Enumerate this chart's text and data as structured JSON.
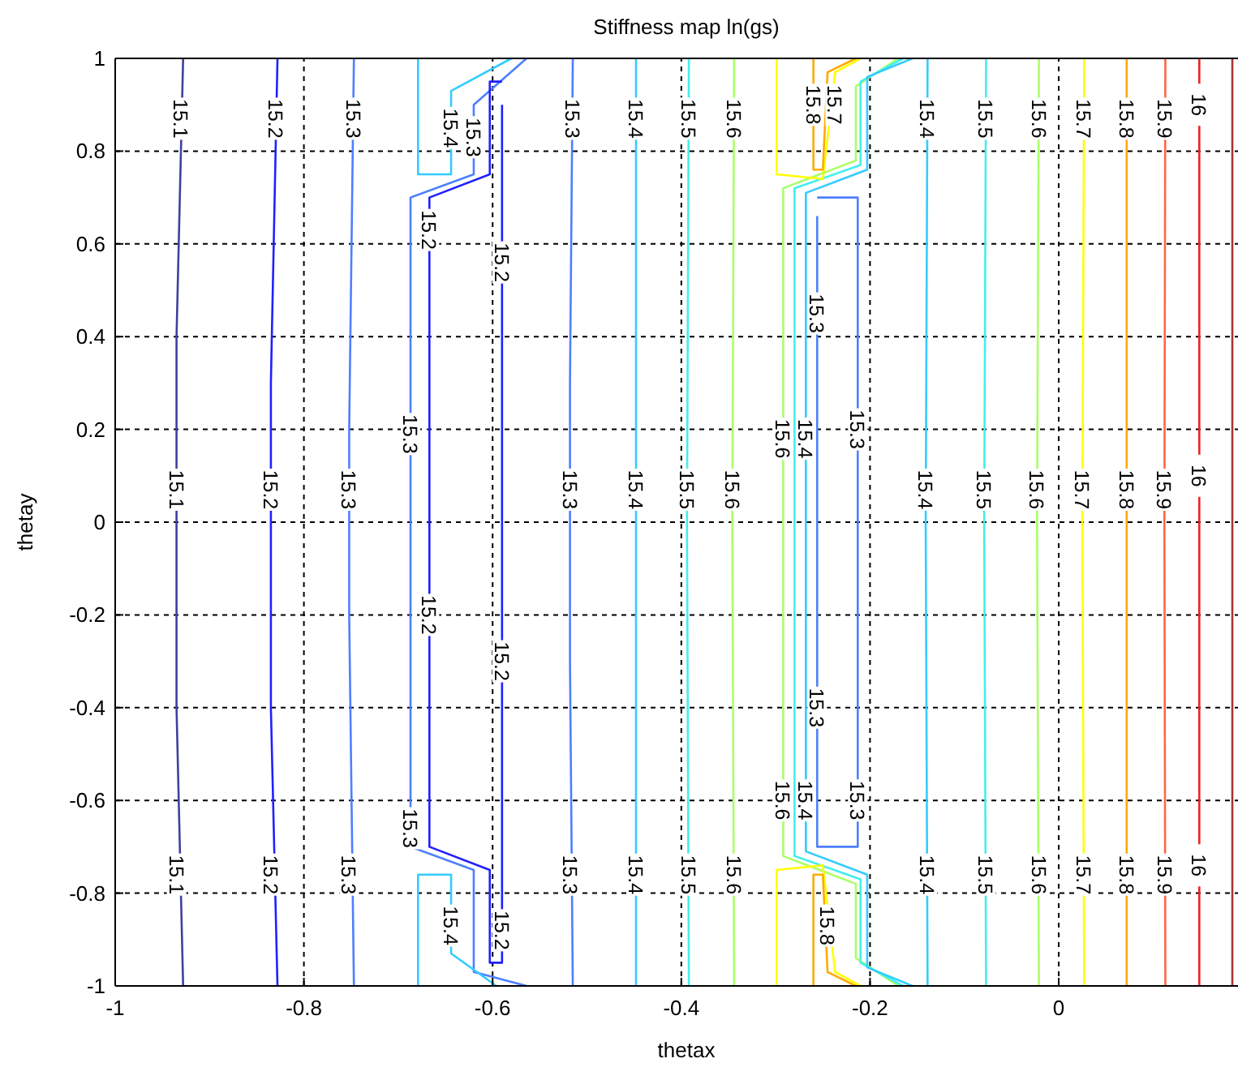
{
  "chart_data": {
    "type": "line",
    "title": "Stiffness map ln(gs)",
    "xlabel": "thetax",
    "ylabel": "thetay",
    "xlim": [
      -1,
      0.19
    ],
    "ylim": [
      -1,
      1
    ],
    "xticks": [
      -1,
      -0.8,
      -0.6,
      -0.4,
      -0.2,
      0
    ],
    "yticks": [
      -1,
      -0.8,
      -0.6,
      -0.4,
      -0.2,
      0,
      0.2,
      0.4,
      0.6,
      0.8,
      1
    ],
    "grid": true,
    "marker": "none",
    "line_style": "solid",
    "series": [
      {
        "color": "#4040a0",
        "x": [
          -0.928,
          -0.935,
          -0.935,
          -0.928
        ],
        "values": [
          1,
          0.4,
          -0.4,
          -1
        ]
      },
      {
        "color": "#2020ff",
        "x": [
          -0.828,
          -0.835,
          -0.835,
          -0.828
        ],
        "values": [
          1,
          0.3,
          -0.4,
          -1
        ]
      },
      {
        "color": "#4d7fff",
        "x": [
          -0.747,
          -0.752,
          -0.752,
          -0.747
        ],
        "values": [
          1,
          0.2,
          -0.2,
          -1
        ]
      },
      {
        "color": "#4d7fff",
        "x": [
          -0.564,
          -0.62,
          -0.62,
          -0.687,
          -0.687,
          -0.62,
          -0.62,
          -0.564
        ],
        "values": [
          -1,
          -0.97,
          -0.75,
          -0.7,
          0.7,
          0.75,
          0.9,
          1
        ]
      },
      {
        "color": "#2020ff",
        "x": [
          -0.59,
          -0.603,
          -0.603,
          -0.667,
          -0.667,
          -0.603,
          -0.603,
          -0.59,
          -0.59
        ],
        "values": [
          0.95,
          0.95,
          0.75,
          0.7,
          -0.7,
          -0.75,
          -0.95,
          -0.95,
          0.9
        ]
      },
      {
        "color": "#33ccff",
        "x": [
          -0.679,
          -0.679,
          -0.644,
          -0.644,
          -0.596
        ],
        "values": [
          -1,
          -0.76,
          -0.76,
          -0.93,
          -1
        ]
      },
      {
        "color": "#33ccff",
        "x": [
          -0.679,
          -0.679,
          -0.644,
          -0.644,
          -0.58
        ],
        "values": [
          1,
          0.75,
          0.75,
          0.93,
          1
        ]
      },
      {
        "color": "#4d7fff",
        "x": [
          -0.515,
          -0.518,
          -0.518,
          -0.515
        ],
        "values": [
          1,
          0.3,
          -0.3,
          -1
        ]
      },
      {
        "color": "#33ccff",
        "x": [
          -0.448,
          -0.448
        ],
        "values": [
          1,
          -1
        ]
      },
      {
        "color": "#44eeee",
        "x": [
          -0.392,
          -0.394,
          -0.392
        ],
        "values": [
          1,
          0,
          -1
        ]
      },
      {
        "color": "#aaff66",
        "x": [
          -0.344,
          -0.346,
          -0.344
        ],
        "values": [
          1,
          0,
          -1
        ]
      },
      {
        "color": "#aaff66",
        "x": [
          -0.17,
          -0.215,
          -0.215,
          -0.292,
          -0.292,
          -0.215,
          -0.215,
          -0.17
        ],
        "values": [
          1,
          0.94,
          0.78,
          0.72,
          -0.72,
          -0.78,
          -0.94,
          -1
        ]
      },
      {
        "color": "#44eeee",
        "x": [
          -0.165,
          -0.21,
          -0.21,
          -0.28,
          -0.28,
          -0.21,
          -0.21,
          -0.165
        ],
        "values": [
          1,
          0.95,
          0.77,
          0.72,
          -0.72,
          -0.77,
          -0.95,
          -1
        ]
      },
      {
        "color": "#33ccff",
        "x": [
          -0.155,
          -0.203,
          -0.203,
          -0.268,
          -0.268,
          -0.203,
          -0.203,
          -0.155
        ],
        "values": [
          1,
          0.96,
          0.76,
          0.71,
          -0.71,
          -0.76,
          -0.96,
          -1
        ]
      },
      {
        "color": "#4d7fff",
        "x": [
          -0.256,
          -0.213,
          -0.213,
          -0.256,
          -0.256
        ],
        "values": [
          0.7,
          0.7,
          -0.7,
          -0.7,
          0.66
        ]
      },
      {
        "color": "#ffff00",
        "x": [
          -0.299,
          -0.299,
          -0.25,
          -0.237,
          -0.21
        ],
        "values": [
          1,
          0.75,
          0.74,
          0.97,
          1
        ]
      },
      {
        "color": "#ffaa00",
        "x": [
          -0.26,
          -0.26,
          -0.25,
          -0.245,
          -0.215
        ],
        "values": [
          1,
          0.76,
          0.76,
          0.97,
          1
        ]
      },
      {
        "color": "#ffff00",
        "x": [
          -0.299,
          -0.299,
          -0.25,
          -0.237,
          -0.21
        ],
        "values": [
          -1,
          -0.75,
          -0.74,
          -0.97,
          -1
        ]
      },
      {
        "color": "#ffaa00",
        "x": [
          -0.26,
          -0.26,
          -0.25,
          -0.245,
          -0.215
        ],
        "values": [
          -1,
          -0.76,
          -0.76,
          -0.97,
          -1
        ]
      },
      {
        "color": "#33ccff",
        "x": [
          -0.139,
          -0.141,
          -0.139
        ],
        "values": [
          1,
          0,
          -1
        ]
      },
      {
        "color": "#44eeee",
        "x": [
          -0.077,
          -0.079,
          -0.077
        ],
        "values": [
          1,
          0,
          -1
        ]
      },
      {
        "color": "#aaff66",
        "x": [
          -0.021,
          -0.023,
          -0.021
        ],
        "values": [
          1,
          0,
          -1
        ]
      },
      {
        "color": "#ffff00",
        "x": [
          0.027,
          0.025,
          0.027
        ],
        "values": [
          1,
          0,
          -1
        ]
      },
      {
        "color": "#ffaa00",
        "x": [
          0.072,
          0.072
        ],
        "values": [
          1,
          -1
        ]
      },
      {
        "color": "#ff6644",
        "x": [
          0.113,
          0.112,
          0.113
        ],
        "values": [
          1,
          0,
          -1
        ]
      },
      {
        "color": "#ee2222",
        "x": [
          0.149,
          0.149
        ],
        "values": [
          1,
          -1
        ]
      },
      {
        "color": "#aa3333",
        "x": [
          0.184,
          0.184
        ],
        "values": [
          1,
          -1
        ]
      }
    ],
    "annotations": [
      {
        "text": "15.1",
        "x": -0.93,
        "y": 0.87
      },
      {
        "text": "15.1",
        "x": -0.935,
        "y": 0.07
      },
      {
        "text": "15.1",
        "x": -0.935,
        "y": -0.76
      },
      {
        "text": "15.2",
        "x": -0.83,
        "y": 0.87
      },
      {
        "text": "15.2",
        "x": -0.835,
        "y": 0.07
      },
      {
        "text": "15.2",
        "x": -0.835,
        "y": -0.76
      },
      {
        "text": "15.3",
        "x": -0.747,
        "y": 0.87
      },
      {
        "text": "15.3",
        "x": -0.752,
        "y": 0.07
      },
      {
        "text": "15.3",
        "x": -0.752,
        "y": -0.76
      },
      {
        "text": "15.3",
        "x": -0.687,
        "y": 0.19
      },
      {
        "text": "15.3",
        "x": -0.687,
        "y": -0.66
      },
      {
        "text": "15.2",
        "x": -0.667,
        "y": 0.63
      },
      {
        "text": "15.2",
        "x": -0.59,
        "y": 0.56
      },
      {
        "text": "15.2",
        "x": -0.667,
        "y": -0.2
      },
      {
        "text": "15.2",
        "x": -0.59,
        "y": -0.3
      },
      {
        "text": "15.2",
        "x": -0.59,
        "y": -0.88
      },
      {
        "text": "15.4",
        "x": -0.644,
        "y": 0.85
      },
      {
        "text": "15.3",
        "x": -0.62,
        "y": 0.83
      },
      {
        "text": "15.4",
        "x": -0.644,
        "y": -0.87
      },
      {
        "text": "15.3",
        "x": -0.515,
        "y": 0.87
      },
      {
        "text": "15.3",
        "x": -0.518,
        "y": 0.07
      },
      {
        "text": "15.3",
        "x": -0.518,
        "y": -0.76
      },
      {
        "text": "15.4",
        "x": -0.448,
        "y": 0.87
      },
      {
        "text": "15.4",
        "x": -0.448,
        "y": 0.07
      },
      {
        "text": "15.4",
        "x": -0.448,
        "y": -0.76
      },
      {
        "text": "15.5",
        "x": -0.392,
        "y": 0.87
      },
      {
        "text": "15.5",
        "x": -0.394,
        "y": 0.07
      },
      {
        "text": "15.5",
        "x": -0.392,
        "y": -0.76
      },
      {
        "text": "15.6",
        "x": -0.344,
        "y": 0.87
      },
      {
        "text": "15.6",
        "x": -0.346,
        "y": 0.07
      },
      {
        "text": "15.6",
        "x": -0.344,
        "y": -0.76
      },
      {
        "text": "15.8",
        "x": -0.26,
        "y": 0.9
      },
      {
        "text": "15.7",
        "x": -0.237,
        "y": 0.9
      },
      {
        "text": "15.3",
        "x": -0.256,
        "y": 0.45
      },
      {
        "text": "15.3",
        "x": -0.213,
        "y": 0.2
      },
      {
        "text": "15.3",
        "x": -0.256,
        "y": -0.4
      },
      {
        "text": "15.3",
        "x": -0.213,
        "y": -0.6
      },
      {
        "text": "15.6",
        "x": -0.292,
        "y": 0.18
      },
      {
        "text": "15.4",
        "x": -0.268,
        "y": 0.18
      },
      {
        "text": "15.6",
        "x": -0.292,
        "y": -0.6
      },
      {
        "text": "15.4",
        "x": -0.268,
        "y": -0.6
      },
      {
        "text": "15.8",
        "x": -0.245,
        "y": -0.87
      },
      {
        "text": "15.4",
        "x": -0.139,
        "y": 0.87
      },
      {
        "text": "15.4",
        "x": -0.141,
        "y": 0.07
      },
      {
        "text": "15.4",
        "x": -0.139,
        "y": -0.76
      },
      {
        "text": "15.5",
        "x": -0.077,
        "y": 0.87
      },
      {
        "text": "15.5",
        "x": -0.079,
        "y": 0.07
      },
      {
        "text": "15.5",
        "x": -0.077,
        "y": -0.76
      },
      {
        "text": "15.6",
        "x": -0.021,
        "y": 0.87
      },
      {
        "text": "15.6",
        "x": -0.023,
        "y": 0.07
      },
      {
        "text": "15.6",
        "x": -0.021,
        "y": -0.76
      },
      {
        "text": "15.7",
        "x": 0.027,
        "y": 0.87
      },
      {
        "text": "15.7",
        "x": 0.025,
        "y": 0.07
      },
      {
        "text": "15.7",
        "x": 0.027,
        "y": -0.76
      },
      {
        "text": "15.8",
        "x": 0.072,
        "y": 0.87
      },
      {
        "text": "15.8",
        "x": 0.072,
        "y": 0.07
      },
      {
        "text": "15.8",
        "x": 0.072,
        "y": -0.76
      },
      {
        "text": "15.9",
        "x": 0.113,
        "y": 0.87
      },
      {
        "text": "15.9",
        "x": 0.112,
        "y": 0.07
      },
      {
        "text": "15.9",
        "x": 0.113,
        "y": -0.76
      },
      {
        "text": "16",
        "x": 0.149,
        "y": 0.9
      },
      {
        "text": "16",
        "x": 0.149,
        "y": 0.1
      },
      {
        "text": "16",
        "x": 0.149,
        "y": -0.74
      }
    ]
  }
}
